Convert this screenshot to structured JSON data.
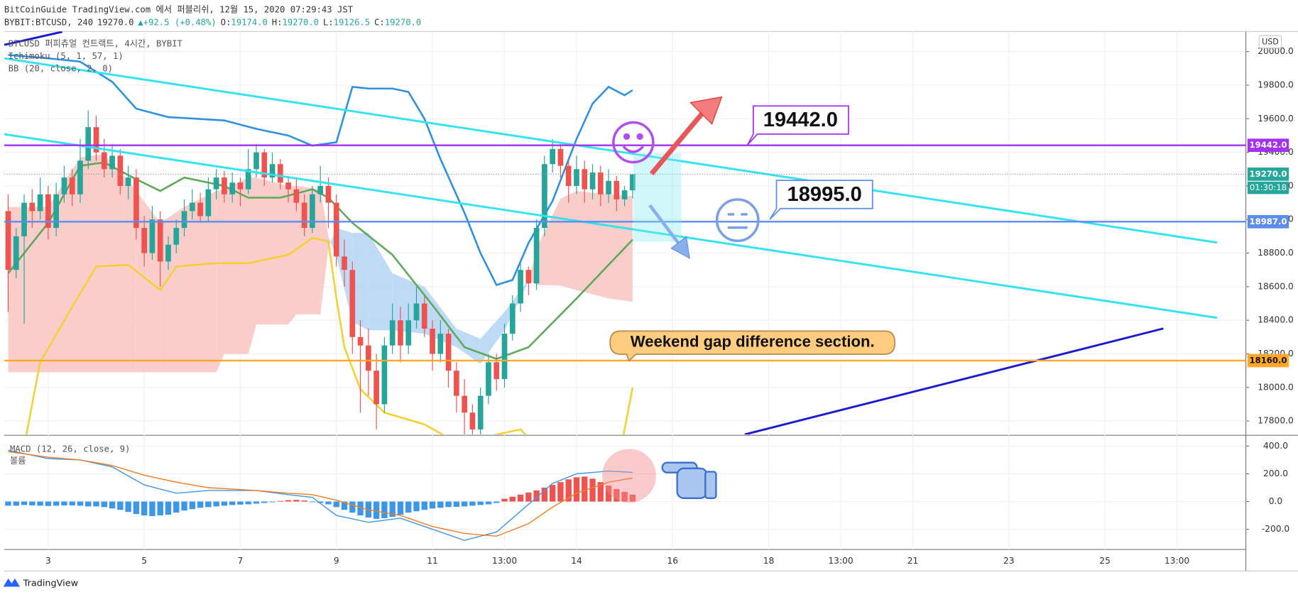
{
  "header": {
    "line1": "BitCoinGuide TradingView.com 에서 퍼블리쉬, 12월 15, 2020 07:29:43 JST",
    "symbol": "BYBIT:BTCUSD, 240",
    "price": "19270.0",
    "change": "▲+92.5 (+0.48%)",
    "ohlc": [
      [
        "O:",
        "19174.0"
      ],
      [
        "H:",
        "19270.0"
      ],
      [
        "L:",
        "19126.5"
      ],
      [
        "C:",
        "19270.0"
      ]
    ]
  },
  "chart_data": {
    "type": "candlestick",
    "legend": [
      "BTCUSD 퍼피츄얼 컨트랙트, 4시간, BYBIT",
      "Ichimoku (5, 1, 57, 1)",
      "BB (20, close, 2, 0)"
    ],
    "currency": "USD",
    "xlim": [
      -5.5,
      149.6
    ],
    "ylim": [
      17720,
      20120
    ],
    "xticks": [
      {
        "value": 0,
        "label": "3"
      },
      {
        "value": 12,
        "label": "5"
      },
      {
        "value": 24,
        "label": "7"
      },
      {
        "value": 36,
        "label": "9"
      },
      {
        "value": 48,
        "label": "11"
      },
      {
        "value": 57,
        "label": "13:00"
      },
      {
        "value": 66,
        "label": "14"
      },
      {
        "value": 78,
        "label": "16"
      },
      {
        "value": 90,
        "label": "18"
      },
      {
        "value": 99,
        "label": "13:00"
      },
      {
        "value": 108,
        "label": "21"
      },
      {
        "value": 120,
        "label": "23"
      },
      {
        "value": 132,
        "label": "25"
      },
      {
        "value": 141,
        "label": "13:00"
      }
    ],
    "yticks": [
      {
        "value": 20000,
        "label": "20000.0"
      },
      {
        "value": 19800,
        "label": "19800.0"
      },
      {
        "value": 19600,
        "label": "19600.0"
      },
      {
        "value": 19400,
        "label": "19400.0"
      },
      {
        "value": 19200,
        "label": "19200.0"
      },
      {
        "value": 19000,
        "label": "19000.0"
      },
      {
        "value": 18800,
        "label": "18800.0"
      },
      {
        "value": 18600,
        "label": "18600.0"
      },
      {
        "value": 18400,
        "label": "18400.0"
      },
      {
        "value": 18200,
        "label": "18200.0"
      },
      {
        "value": 18000,
        "label": "18000.0"
      },
      {
        "value": 17800,
        "label": "17800.0"
      }
    ],
    "grid": true,
    "up_color": "#26a69a",
    "down_color": "#ef5350",
    "x": [
      -5,
      -4,
      -3,
      -2,
      -1,
      0,
      1,
      2,
      3,
      4,
      5,
      6,
      7,
      8,
      9,
      10,
      11,
      12,
      13,
      14,
      15,
      16,
      17,
      18,
      19,
      20,
      21,
      22,
      23,
      24,
      25,
      26,
      27,
      28,
      29,
      30,
      31,
      32,
      33,
      34,
      35,
      36,
      37,
      38,
      39,
      40,
      41,
      42,
      43,
      44,
      45,
      46,
      47,
      48,
      49,
      50,
      51,
      52,
      53,
      54,
      55,
      56,
      57,
      58,
      59,
      60,
      61,
      62,
      63,
      64,
      65,
      66,
      67,
      68,
      69,
      70,
      71,
      72,
      73
    ],
    "ohlc": [
      [
        19050,
        19150,
        18450,
        18700
      ],
      [
        18700,
        18950,
        18650,
        18900
      ],
      [
        18900,
        19150,
        18380,
        19100
      ],
      [
        19100,
        19180,
        18950,
        19050
      ],
      [
        19050,
        19250,
        19000,
        19150
      ],
      [
        19150,
        19200,
        18880,
        18950
      ],
      [
        18950,
        19220,
        18900,
        19150
      ],
      [
        19150,
        19320,
        19100,
        19250
      ],
      [
        19250,
        19300,
        19080,
        19150
      ],
      [
        19150,
        19480,
        19100,
        19350
      ],
      [
        19350,
        19650,
        19300,
        19550
      ],
      [
        19550,
        19620,
        19350,
        19400
      ],
      [
        19400,
        19480,
        19250,
        19300
      ],
      [
        19300,
        19450,
        19250,
        19380
      ],
      [
        19380,
        19420,
        19150,
        19200
      ],
      [
        19200,
        19320,
        19120,
        19250
      ],
      [
        19250,
        19300,
        18880,
        18950
      ],
      [
        18950,
        19020,
        18720,
        18800
      ],
      [
        18800,
        19080,
        18760,
        19000
      ],
      [
        19000,
        19050,
        18600,
        18750
      ],
      [
        18750,
        18900,
        18700,
        18850
      ],
      [
        18850,
        19000,
        18800,
        18950
      ],
      [
        18950,
        19120,
        18900,
        19050
      ],
      [
        19050,
        19180,
        19000,
        19100
      ],
      [
        19100,
        19160,
        18980,
        19020
      ],
      [
        19020,
        19250,
        18990,
        19180
      ],
      [
        19180,
        19300,
        19120,
        19250
      ],
      [
        19250,
        19290,
        19100,
        19150
      ],
      [
        19150,
        19280,
        19100,
        19220
      ],
      [
        19220,
        19250,
        19080,
        19180
      ],
      [
        19180,
        19420,
        19150,
        19300
      ],
      [
        19300,
        19450,
        19250,
        19400
      ],
      [
        19400,
        19420,
        19200,
        19250
      ],
      [
        19250,
        19400,
        19220,
        19330
      ],
      [
        19330,
        19360,
        19180,
        19220
      ],
      [
        19220,
        19260,
        19100,
        19180
      ],
      [
        19180,
        19250,
        19050,
        19100
      ],
      [
        19100,
        19150,
        18900,
        18950
      ],
      [
        18950,
        19200,
        18920,
        19150
      ],
      [
        19150,
        19320,
        19100,
        19200
      ],
      [
        19200,
        19250,
        18950,
        19100
      ],
      [
        19100,
        19150,
        18720,
        18780
      ],
      [
        18780,
        18880,
        18600,
        18700
      ],
      [
        18700,
        18750,
        18200,
        18300
      ],
      [
        18300,
        18400,
        17850,
        18250
      ],
      [
        18250,
        18350,
        17950,
        18100
      ],
      [
        18100,
        18200,
        17750,
        17900
      ],
      [
        17900,
        18300,
        17850,
        18250
      ],
      [
        18250,
        18500,
        18200,
        18400
      ],
      [
        18400,
        18480,
        18150,
        18250
      ],
      [
        18250,
        18500,
        18200,
        18400
      ],
      [
        18400,
        18600,
        18350,
        18500
      ],
      [
        18500,
        18550,
        18300,
        18350
      ],
      [
        18350,
        18400,
        18100,
        18200
      ],
      [
        18200,
        18400,
        18150,
        18320
      ],
      [
        18320,
        18350,
        18000,
        18100
      ],
      [
        18100,
        18150,
        17850,
        17950
      ],
      [
        17950,
        18050,
        17700,
        17850
      ],
      [
        17850,
        17900,
        17650,
        17750
      ],
      [
        17750,
        18000,
        17700,
        17950
      ],
      [
        17950,
        18200,
        17900,
        18150
      ],
      [
        18150,
        18200,
        17980,
        18050
      ],
      [
        18050,
        18380,
        18000,
        18320
      ],
      [
        18320,
        18550,
        18280,
        18500
      ],
      [
        18500,
        18750,
        18450,
        18700
      ],
      [
        18700,
        18720,
        18550,
        18620
      ],
      [
        18620,
        19000,
        18580,
        18950
      ],
      [
        18950,
        19380,
        18900,
        19330
      ],
      [
        19330,
        19480,
        19280,
        19420
      ],
      [
        19420,
        19450,
        19250,
        19320
      ],
      [
        19320,
        19350,
        19100,
        19200
      ],
      [
        19200,
        19380,
        19150,
        19300
      ],
      [
        19300,
        19350,
        19100,
        19180
      ],
      [
        19180,
        19330,
        19120,
        19280
      ],
      [
        19280,
        19320,
        19080,
        19150
      ],
      [
        19150,
        19300,
        19100,
        19230
      ],
      [
        19230,
        19260,
        19050,
        19120
      ],
      [
        19120,
        19200,
        19080,
        19174
      ],
      [
        19174,
        19270,
        19126.5,
        19270
      ]
    ],
    "cloud": {
      "x": [
        -5,
        0,
        4,
        7,
        11,
        14,
        17,
        21,
        22,
        25,
        26,
        30,
        31,
        34,
        35,
        36,
        38,
        40,
        43,
        47,
        51,
        54,
        57,
        60,
        61,
        64,
        66,
        70,
        73
      ],
      "span_a": [
        19075,
        19075,
        19370,
        19390,
        19170,
        18980,
        19075,
        19170,
        19180,
        19250,
        19250,
        19200,
        19200,
        19180,
        18900,
        18780,
        18390,
        18340,
        18340,
        18320,
        18240,
        18140,
        18340,
        18630,
        18830,
        19124,
        19170,
        19150,
        19140
      ],
      "span_b": [
        18090,
        18090,
        18090,
        18090,
        18090,
        18090,
        18090,
        18090,
        18200,
        18200,
        18375,
        18375,
        18435,
        18435,
        18830,
        18950,
        18920,
        18920,
        18680,
        18600,
        18350,
        18290,
        18450,
        18640,
        18610,
        18607,
        18580,
        18530,
        18510
      ],
      "bull_color": "#f8c4c0",
      "bear_color": "#b3d3f3"
    },
    "indicator_lines": [
      {
        "color": "#2f8fe0",
        "x": [
          -5,
          0,
          4,
          8,
          11,
          15,
          22,
          26,
          30,
          33,
          36,
          38,
          40,
          43,
          45,
          47,
          49,
          52,
          54,
          56,
          58,
          60,
          63,
          66,
          68,
          70,
          72,
          73
        ],
        "values": [
          19980,
          19960,
          19940,
          19820,
          19660,
          19610,
          19590,
          19540,
          19500,
          19440,
          19460,
          19790,
          19780,
          19780,
          19760,
          19600,
          19360,
          19040,
          18800,
          18610,
          18640,
          18860,
          19110,
          19480,
          19690,
          19790,
          19740,
          19770
        ]
      },
      {
        "color": "#5fa85a",
        "x": [
          -5,
          0,
          4,
          7,
          11,
          14,
          17,
          22,
          25,
          29,
          33,
          35,
          38,
          43,
          48,
          52,
          56,
          60,
          66,
          73
        ],
        "values": [
          18680,
          18980,
          19320,
          19340,
          19240,
          19170,
          19250,
          19200,
          19130,
          19130,
          19180,
          19130,
          18980,
          18790,
          18490,
          18240,
          18170,
          18240,
          18530,
          18880
        ]
      },
      {
        "color": "#f5d033",
        "x": [
          -3,
          -1,
          3,
          6,
          10,
          14,
          16,
          21,
          25,
          30,
          33,
          35,
          36,
          37,
          39,
          42,
          47,
          50,
          53,
          56,
          59,
          61,
          66,
          71,
          73
        ],
        "values": [
          17650,
          18150,
          18480,
          18720,
          18730,
          18580,
          18720,
          18740,
          18740,
          18790,
          18890,
          18870,
          18530,
          18240,
          17990,
          17850,
          17780,
          17700,
          17650,
          17720,
          17750,
          17650,
          17500,
          17500,
          18000
        ]
      }
    ],
    "trendlines": [
      {
        "color": "#33e3f0",
        "x": [
          -5.48,
          146
        ],
        "values": [
          19960,
          18863
        ]
      },
      {
        "color": "#33e3f0",
        "x": [
          -5.48,
          146
        ],
        "values": [
          19508,
          18415
        ]
      },
      {
        "color": "#1a1ad0",
        "x": [
          -5.48,
          1.76
        ],
        "values": [
          20040,
          20118
        ]
      },
      {
        "color": "#1a1ad0",
        "x": [
          87,
          139.3
        ],
        "values": [
          17720,
          18351
        ]
      }
    ],
    "price_lines": [
      {
        "value": 19442,
        "label": "19442.0",
        "color": "#a531f0"
      },
      {
        "value": 18987,
        "label": "18987.0",
        "color": "#5b8def"
      },
      {
        "value": 18160,
        "label": "18160.0",
        "color": "#ffa726"
      }
    ],
    "last_price": {
      "value": 19270,
      "label": "19270.0",
      "countdown": "01:30:18",
      "color": "#26a69a"
    },
    "annotations": [
      "19442.0",
      "18995.0",
      "Weekend gap difference section."
    ],
    "macd": {
      "legend": [
        "MACD (12, 26, close, 9)",
        "볼륨"
      ],
      "ylim": [
        -346,
        472
      ],
      "yticks": [
        {
          "value": 400,
          "label": "400.0"
        },
        {
          "value": 200,
          "label": "200.0"
        },
        {
          "value": 0,
          "label": "0.0"
        },
        {
          "value": -200,
          "label": "-200.0"
        }
      ],
      "pos_color": "#ef5350",
      "neg_color": "#3d97e8",
      "histogram": [
        -30,
        -30,
        -25,
        -28,
        -30,
        -32,
        -30,
        -28,
        -28,
        -30,
        -35,
        -35,
        -40,
        -50,
        -60,
        -75,
        -90,
        -100,
        -105,
        -100,
        -95,
        -80,
        -65,
        -55,
        -45,
        -40,
        -35,
        -30,
        -25,
        -22,
        -20,
        -15,
        -10,
        -5,
        5,
        10,
        12,
        8,
        -5,
        -10,
        -20,
        -40,
        -60,
        -80,
        -100,
        -115,
        -125,
        -120,
        -110,
        -95,
        -80,
        -70,
        -60,
        -50,
        -45,
        -40,
        -38,
        -35,
        -30,
        -25,
        -20,
        -10,
        20,
        35,
        50,
        65,
        80,
        100,
        120,
        140,
        160,
        175,
        180,
        165,
        140,
        115,
        90,
        70,
        50
      ],
      "lines": [
        {
          "color": "#3d97e8",
          "x": [
            -5,
            0,
            4,
            8,
            12,
            16,
            20,
            26,
            30,
            33,
            36,
            40,
            44,
            48,
            52,
            56,
            60,
            63,
            66,
            70,
            73
          ],
          "values": [
            370,
            310,
            300,
            250,
            120,
            60,
            80,
            80,
            50,
            30,
            -100,
            -150,
            -120,
            -200,
            -280,
            -220,
            -20,
            130,
            200,
            220,
            210
          ]
        },
        {
          "color": "#f57c20",
          "x": [
            -5,
            0,
            4,
            8,
            12,
            16,
            20,
            26,
            30,
            33,
            36,
            40,
            44,
            48,
            52,
            56,
            60,
            63,
            66,
            70,
            73
          ],
          "values": [
            360,
            320,
            300,
            260,
            190,
            140,
            100,
            80,
            60,
            50,
            10,
            -60,
            -100,
            -180,
            -230,
            -250,
            -160,
            -40,
            60,
            140,
            170
          ]
        }
      ]
    },
    "footer": "TradingView"
  }
}
